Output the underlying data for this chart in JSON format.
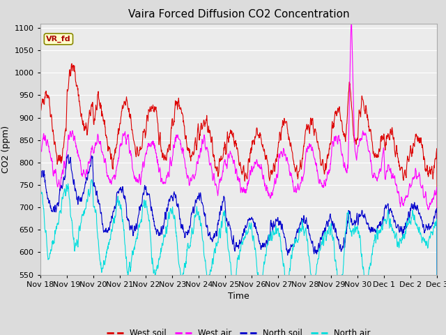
{
  "title": "Vaira Forced Diffusion CO2 Concentration",
  "xlabel": "Time",
  "ylabel": "CO2 (ppm)",
  "ylim": [
    550,
    1110
  ],
  "yticks": [
    550,
    600,
    650,
    700,
    750,
    800,
    850,
    900,
    950,
    1000,
    1050,
    1100
  ],
  "bg_color": "#dcdcdc",
  "plot_bg_color": "#ebebeb",
  "series_colors": {
    "west_soil": "#dd0000",
    "west_air": "#ff00ff",
    "north_soil": "#0000cc",
    "north_air": "#00dddd"
  },
  "legend_labels": [
    "West soil",
    "West air",
    "North soil",
    "North air"
  ],
  "annotation_text": "VR_fd",
  "annotation_color": "#aa0000",
  "annotation_bg": "#ffffcc",
  "annotation_border": "#888800",
  "num_days": 15,
  "xtick_labels": [
    "Nov 18",
    "Nov 19",
    "Nov 20",
    "Nov 21",
    "Nov 22",
    "Nov 23",
    "Nov 24",
    "Nov 25",
    "Nov 26",
    "Nov 27",
    "Nov 28",
    "Nov 29",
    "Nov 30",
    "Dec 1",
    "Dec 2",
    "Dec 3"
  ],
  "points_per_day": 96,
  "seed": 42,
  "linewidth": 0.8
}
